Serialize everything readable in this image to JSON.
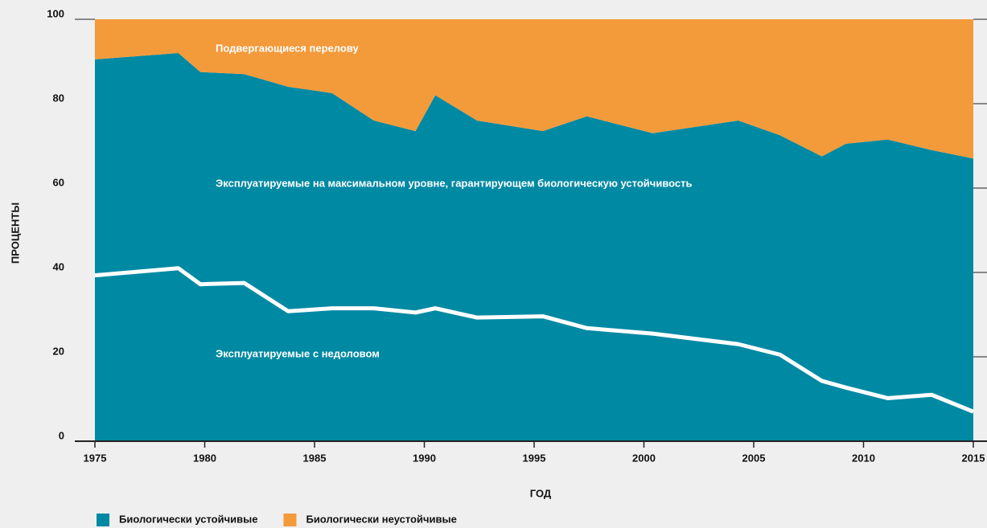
{
  "chart_data": {
    "type": "stacked_area",
    "x_label": "ГОД",
    "y_label": "ПРОЦЕНТЫ",
    "x": [
      1975,
      1978.8,
      1979.8,
      1981.8,
      1983.8,
      1985.8,
      1987.7,
      1989.6,
      1990.5,
      1992.4,
      1995.4,
      1997.4,
      2000.4,
      2004.3,
      2006.2,
      2008.1,
      2009.2,
      2011.1,
      2013.1,
      2015
    ],
    "series": [
      {
        "name": "Биологически устойчивые",
        "color": "#0089a3",
        "values": [
          90.5,
          92,
          87.5,
          87,
          84,
          82.5,
          76,
          73.5,
          82,
          76,
          73.5,
          77,
          73,
          76,
          72.5,
          67.5,
          70.5,
          71.5,
          69,
          67
        ]
      },
      {
        "name": "Биологически неустойчивые",
        "color": "#f39a3b",
        "values": [
          9.5,
          8,
          12.5,
          13,
          16,
          17.5,
          24,
          26.5,
          18,
          24,
          26.5,
          23,
          27,
          24,
          27.5,
          32.5,
          29.5,
          28.5,
          31,
          33
        ]
      }
    ],
    "line": {
      "name": "Эксплуатируемые с недоловом",
      "color": "#ffffff",
      "values": [
        39.3,
        41,
        37.2,
        37.5,
        30.8,
        31.5,
        31.5,
        30.5,
        31.5,
        29.3,
        29.6,
        26.8,
        25.5,
        23,
        20.5,
        14.3,
        12.7,
        10.2,
        11,
        7
      ]
    },
    "annotations": [
      "Подвергающиеся перелову",
      "Эксплуатируемые на максимальном уровне, гарантирующем биологическую устойчивость"
    ],
    "xlim": [
      1975,
      2015
    ],
    "xticks": [
      1975,
      1980,
      1985,
      1990,
      1995,
      2000,
      2005,
      2010,
      2015
    ],
    "ylim": [
      0,
      100
    ],
    "yticks": [
      0,
      20,
      40,
      60,
      80,
      100
    ],
    "legend": "bottom-left"
  }
}
